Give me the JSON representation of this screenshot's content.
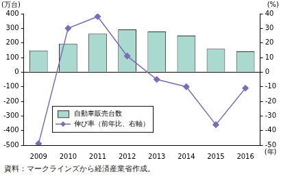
{
  "chart_data": {
    "type": "bar",
    "categories": [
      "2009",
      "2010",
      "2011",
      "2012",
      "2013",
      "2014",
      "2015",
      "2016"
    ],
    "series": [
      {
        "name": "自動車販売台数",
        "type": "bar",
        "color": "#a9d9cf",
        "values": [
          148,
          195,
          263,
          292,
          278,
          250,
          160,
          142
        ]
      },
      {
        "name": "伸び率（前年比、右軸）",
        "type": "line",
        "axis": "y2",
        "color": "#7d6cb5",
        "marker": "diamond",
        "values": [
          -49,
          30,
          38,
          11,
          -5,
          -10,
          -36,
          -11
        ]
      }
    ],
    "ylim": [
      -500,
      400
    ],
    "yticks": [
      -500,
      -400,
      -300,
      -200,
      -100,
      0,
      100,
      200,
      300,
      400
    ],
    "y2lim": [
      -50,
      40
    ],
    "y2ticks": [
      -50,
      -40,
      -30,
      -20,
      -10,
      0,
      10,
      20,
      30,
      40
    ],
    "y_label": "(万台)",
    "y2_label": "(%)",
    "x_label": "(年)",
    "source": "資料：マークラインズから経済産業省作成。",
    "legend": "lower left",
    "grid": false
  }
}
